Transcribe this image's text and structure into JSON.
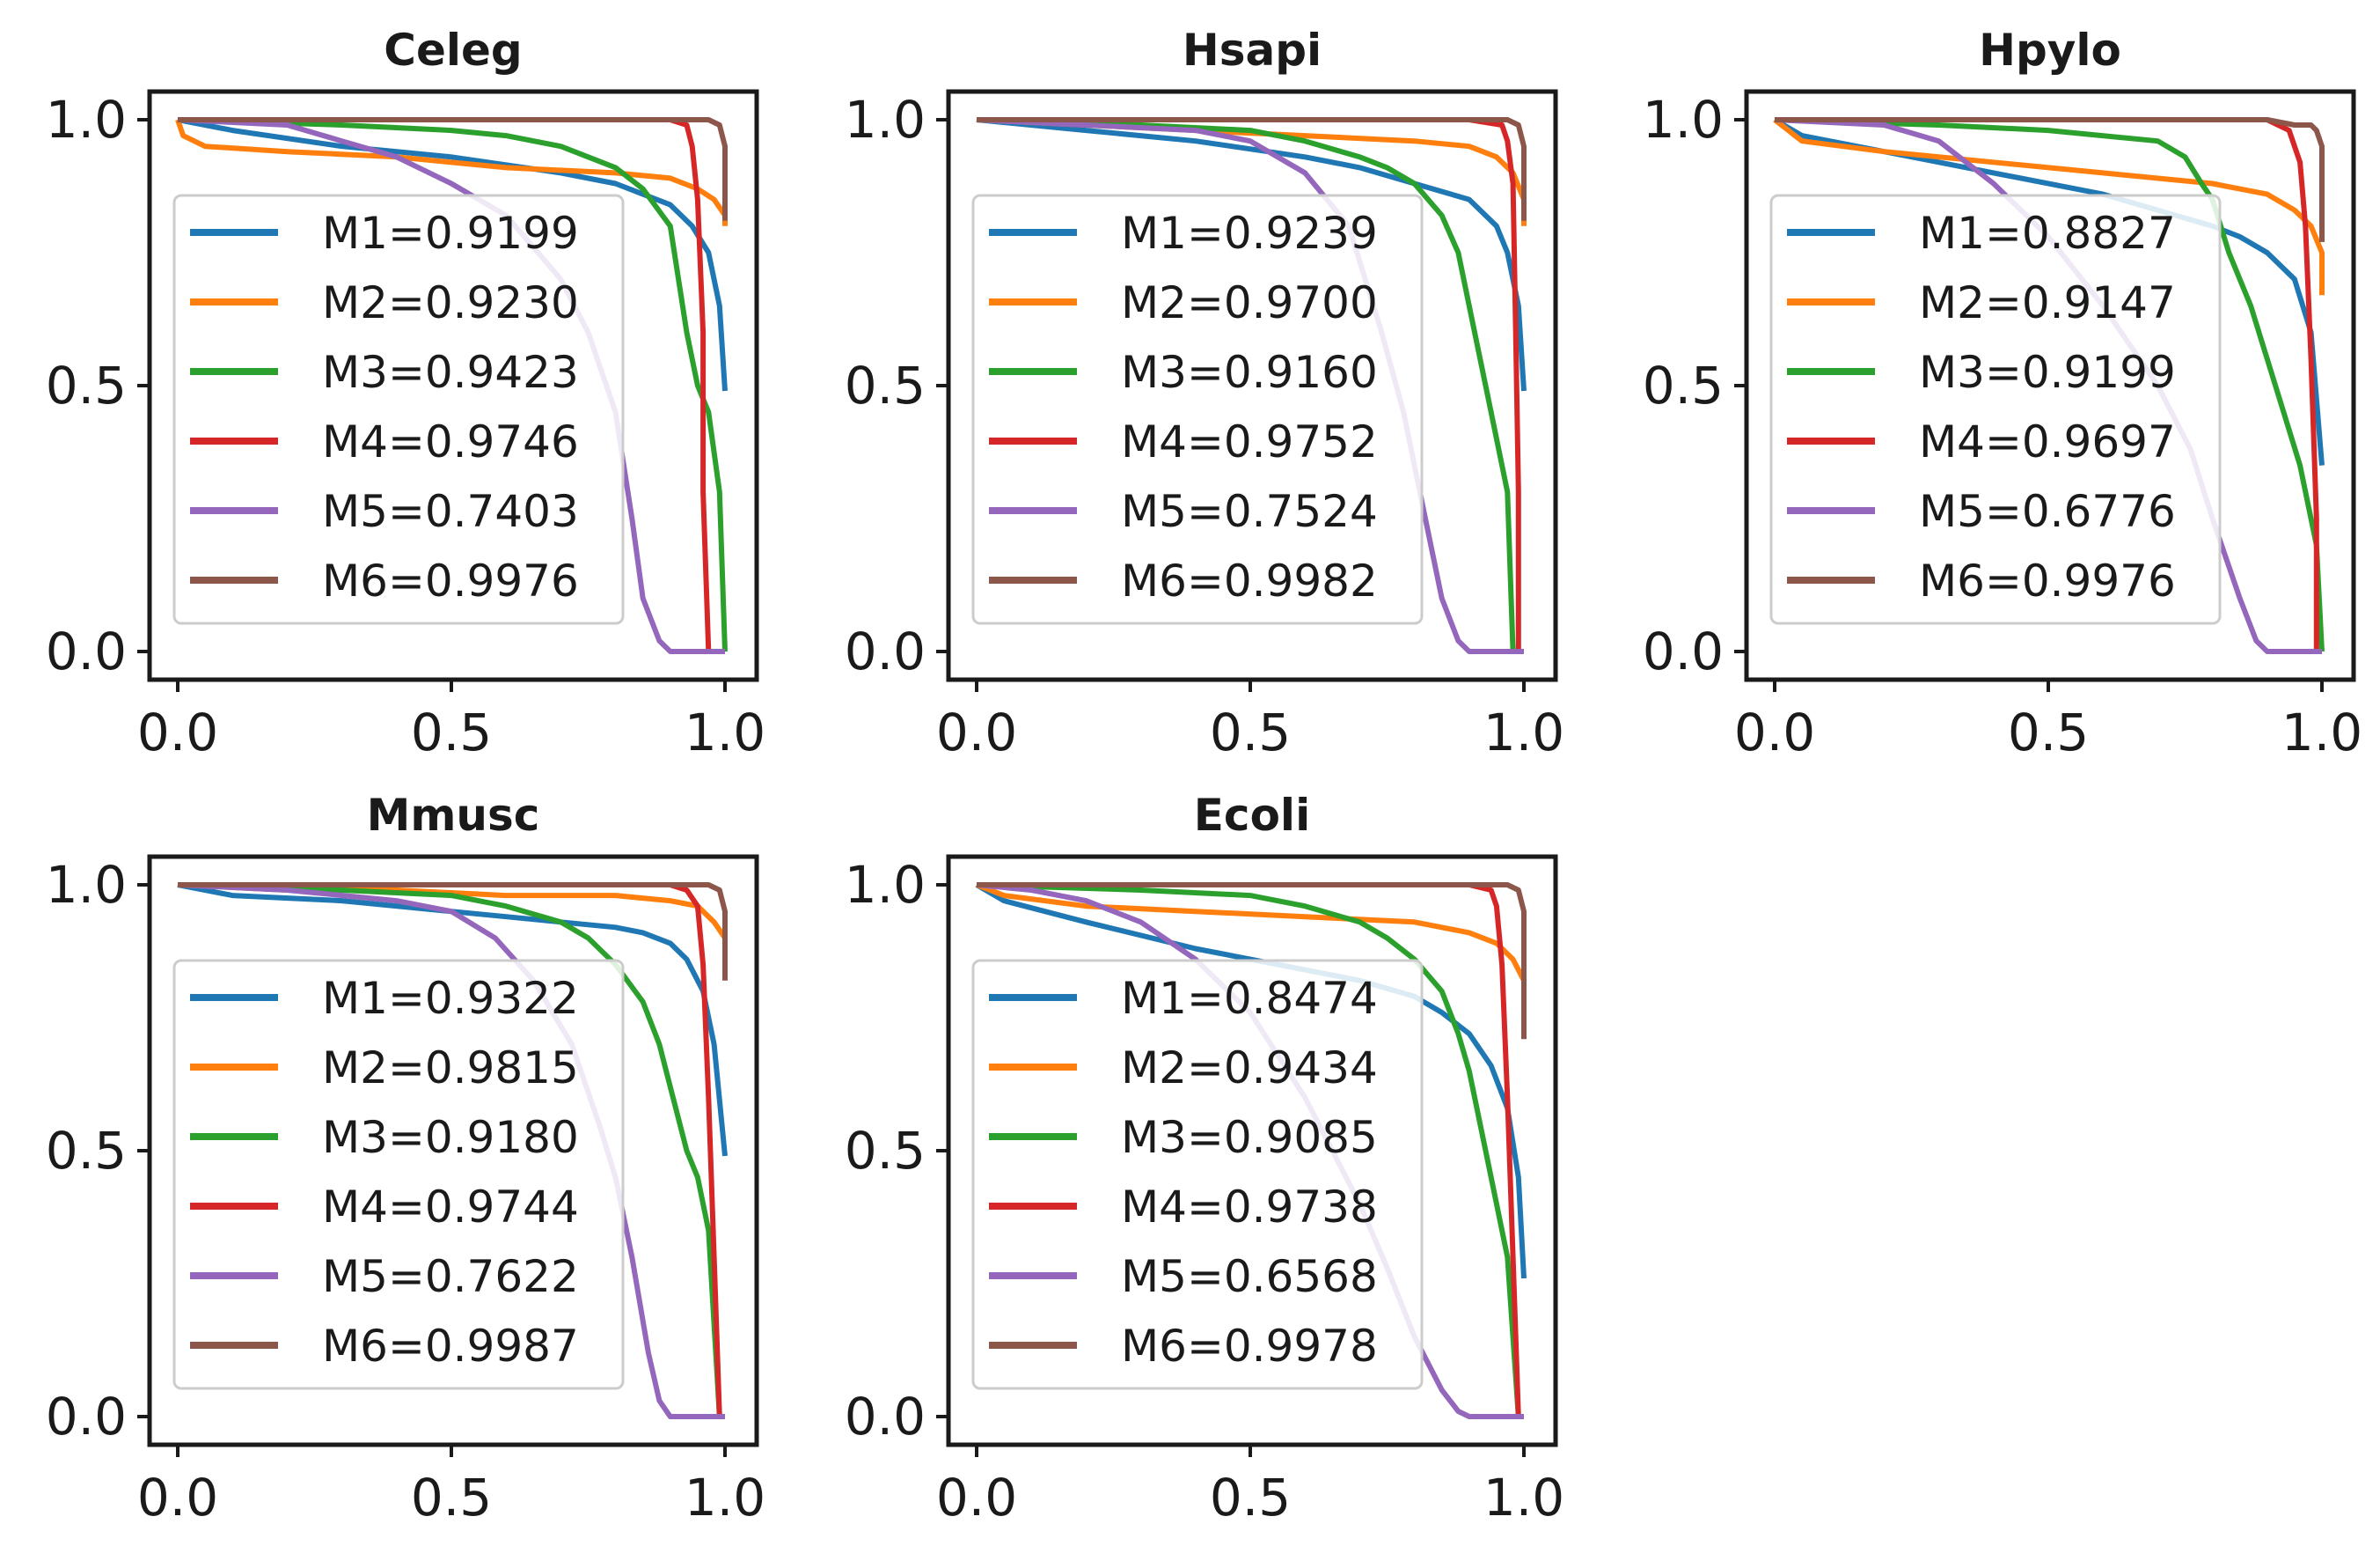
{
  "series_colors": [
    "#1f77b4",
    "#ff7f0e",
    "#2ca02c",
    "#d62728",
    "#9467bd",
    "#8c564b"
  ],
  "chart_data": [
    {
      "type": "line",
      "title": "Celeg",
      "xlim": [
        0,
        1
      ],
      "ylim": [
        0,
        1
      ],
      "xticks": [
        "0.0",
        "0.5",
        "1.0"
      ],
      "yticks": [
        "0.0",
        "0.5",
        "1.0"
      ],
      "legend_position": "center-left",
      "grid": false,
      "series": [
        {
          "name": "M1=0.9199",
          "color": "#1f77b4",
          "x": [
            0,
            0.1,
            0.3,
            0.5,
            0.7,
            0.8,
            0.85,
            0.9,
            0.94,
            0.97,
            0.99,
            1.0
          ],
          "y": [
            1.0,
            0.98,
            0.95,
            0.93,
            0.9,
            0.88,
            0.86,
            0.84,
            0.8,
            0.75,
            0.65,
            0.49
          ]
        },
        {
          "name": "M2=0.9230",
          "color": "#ff7f0e",
          "x": [
            0,
            0.01,
            0.05,
            0.2,
            0.4,
            0.6,
            0.8,
            0.9,
            0.95,
            0.98,
            1.0,
            1.0
          ],
          "y": [
            1.0,
            0.97,
            0.95,
            0.94,
            0.93,
            0.91,
            0.9,
            0.89,
            0.87,
            0.85,
            0.82,
            0.8
          ]
        },
        {
          "name": "M3=0.9423",
          "color": "#2ca02c",
          "x": [
            0,
            0.3,
            0.5,
            0.6,
            0.7,
            0.8,
            0.85,
            0.9,
            0.93,
            0.95,
            0.97,
            0.99,
            1.0
          ],
          "y": [
            1.0,
            0.99,
            0.98,
            0.97,
            0.95,
            0.91,
            0.87,
            0.8,
            0.6,
            0.5,
            0.45,
            0.3,
            0.0
          ]
        },
        {
          "name": "M4=0.9746",
          "color": "#d62728",
          "x": [
            0,
            0.5,
            0.9,
            0.93,
            0.94,
            0.95,
            0.96,
            0.96,
            0.97
          ],
          "y": [
            1.0,
            1.0,
            1.0,
            0.99,
            0.95,
            0.85,
            0.6,
            0.3,
            0.0
          ]
        },
        {
          "name": "M5=0.7403",
          "color": "#9467bd",
          "x": [
            0,
            0.2,
            0.3,
            0.4,
            0.5,
            0.6,
            0.7,
            0.75,
            0.8,
            0.83,
            0.85,
            0.88,
            0.9,
            1.0
          ],
          "y": [
            1.0,
            0.99,
            0.96,
            0.93,
            0.88,
            0.82,
            0.7,
            0.6,
            0.45,
            0.25,
            0.1,
            0.02,
            0.0,
            0.0
          ]
        },
        {
          "name": "M6=0.9976",
          "color": "#8c564b",
          "x": [
            0,
            0.5,
            0.9,
            0.97,
            0.99,
            1.0,
            1.0
          ],
          "y": [
            1.0,
            1.0,
            1.0,
            1.0,
            0.99,
            0.95,
            0.81
          ]
        }
      ]
    },
    {
      "type": "line",
      "title": "Hsapi",
      "xlim": [
        0,
        1
      ],
      "ylim": [
        0,
        1
      ],
      "xticks": [
        "0.0",
        "0.5",
        "1.0"
      ],
      "yticks": [
        "0.0",
        "0.5",
        "1.0"
      ],
      "legend_position": "center-left",
      "grid": false,
      "series": [
        {
          "name": "M1=0.9239",
          "color": "#1f77b4",
          "x": [
            0,
            0.2,
            0.4,
            0.6,
            0.7,
            0.8,
            0.9,
            0.95,
            0.97,
            0.99,
            1.0
          ],
          "y": [
            1.0,
            0.98,
            0.96,
            0.93,
            0.91,
            0.88,
            0.85,
            0.8,
            0.75,
            0.65,
            0.49
          ]
        },
        {
          "name": "M2=0.9700",
          "color": "#ff7f0e",
          "x": [
            0,
            0.2,
            0.4,
            0.6,
            0.8,
            0.9,
            0.95,
            0.98,
            1.0,
            1.0
          ],
          "y": [
            1.0,
            0.99,
            0.98,
            0.97,
            0.96,
            0.95,
            0.93,
            0.9,
            0.85,
            0.8
          ]
        },
        {
          "name": "M3=0.9160",
          "color": "#2ca02c",
          "x": [
            0,
            0.3,
            0.5,
            0.6,
            0.7,
            0.75,
            0.8,
            0.85,
            0.88,
            0.9,
            0.93,
            0.95,
            0.97,
            0.98
          ],
          "y": [
            1.0,
            0.99,
            0.98,
            0.96,
            0.93,
            0.91,
            0.88,
            0.82,
            0.75,
            0.65,
            0.5,
            0.4,
            0.3,
            0.0
          ]
        },
        {
          "name": "M4=0.9752",
          "color": "#d62728",
          "x": [
            0,
            0.5,
            0.9,
            0.96,
            0.97,
            0.98,
            0.985,
            0.99,
            0.99
          ],
          "y": [
            1.0,
            1.0,
            1.0,
            0.99,
            0.96,
            0.88,
            0.6,
            0.3,
            0.0
          ]
        },
        {
          "name": "M5=0.7524",
          "color": "#9467bd",
          "x": [
            0,
            0.2,
            0.4,
            0.5,
            0.6,
            0.68,
            0.74,
            0.78,
            0.82,
            0.85,
            0.88,
            0.9,
            1.0
          ],
          "y": [
            1.0,
            0.99,
            0.98,
            0.96,
            0.9,
            0.8,
            0.6,
            0.45,
            0.25,
            0.1,
            0.02,
            0.0,
            0.0
          ]
        },
        {
          "name": "M6=0.9982",
          "color": "#8c564b",
          "x": [
            0,
            0.5,
            0.9,
            0.97,
            0.99,
            1.0,
            1.0
          ],
          "y": [
            1.0,
            1.0,
            1.0,
            1.0,
            0.99,
            0.95,
            0.81
          ]
        }
      ]
    },
    {
      "type": "line",
      "title": "Hpylo",
      "xlim": [
        0,
        1
      ],
      "ylim": [
        0,
        1
      ],
      "xticks": [
        "0.0",
        "0.5",
        "1.0"
      ],
      "yticks": [
        "0.0",
        "0.5",
        "1.0"
      ],
      "legend_position": "center-left",
      "grid": false,
      "series": [
        {
          "name": "M1=0.8827",
          "color": "#1f77b4",
          "x": [
            0,
            0.05,
            0.2,
            0.4,
            0.6,
            0.7,
            0.8,
            0.85,
            0.9,
            0.95,
            0.98,
            1.0
          ],
          "y": [
            1.0,
            0.97,
            0.94,
            0.9,
            0.86,
            0.83,
            0.8,
            0.78,
            0.75,
            0.7,
            0.6,
            0.35
          ]
        },
        {
          "name": "M2=0.9147",
          "color": "#ff7f0e",
          "x": [
            0,
            0.05,
            0.2,
            0.4,
            0.6,
            0.8,
            0.9,
            0.95,
            0.98,
            1.0,
            1.0
          ],
          "y": [
            1.0,
            0.96,
            0.94,
            0.92,
            0.9,
            0.88,
            0.86,
            0.83,
            0.8,
            0.75,
            0.67
          ]
        },
        {
          "name": "M3=0.9199",
          "color": "#2ca02c",
          "x": [
            0,
            0.3,
            0.5,
            0.7,
            0.75,
            0.78,
            0.8,
            0.83,
            0.87,
            0.9,
            0.93,
            0.96,
            0.99,
            1.0
          ],
          "y": [
            1.0,
            0.99,
            0.98,
            0.96,
            0.93,
            0.88,
            0.85,
            0.75,
            0.65,
            0.55,
            0.45,
            0.35,
            0.2,
            0.0
          ]
        },
        {
          "name": "M4=0.9697",
          "color": "#d62728",
          "x": [
            0,
            0.5,
            0.9,
            0.94,
            0.96,
            0.97,
            0.98,
            0.99,
            0.99
          ],
          "y": [
            1.0,
            1.0,
            1.0,
            0.98,
            0.92,
            0.8,
            0.55,
            0.25,
            0.0
          ]
        },
        {
          "name": "M5=0.6776",
          "color": "#9467bd",
          "x": [
            0,
            0.2,
            0.3,
            0.4,
            0.5,
            0.6,
            0.7,
            0.76,
            0.8,
            0.85,
            0.88,
            0.9,
            1.0
          ],
          "y": [
            1.0,
            0.99,
            0.96,
            0.88,
            0.78,
            0.65,
            0.5,
            0.38,
            0.25,
            0.1,
            0.02,
            0.0,
            0.0
          ]
        },
        {
          "name": "M6=0.9976",
          "color": "#8c564b",
          "x": [
            0,
            0.5,
            0.9,
            0.95,
            0.98,
            0.99,
            1.0,
            1.0
          ],
          "y": [
            1.0,
            1.0,
            1.0,
            0.99,
            0.99,
            0.98,
            0.95,
            0.77
          ]
        }
      ]
    },
    {
      "type": "line",
      "title": "Mmusc",
      "xlim": [
        0,
        1
      ],
      "ylim": [
        0,
        1
      ],
      "xticks": [
        "0.0",
        "0.5",
        "1.0"
      ],
      "yticks": [
        "0.0",
        "0.5",
        "1.0"
      ],
      "legend_position": "center-left",
      "grid": false,
      "series": [
        {
          "name": "M1=0.9322",
          "color": "#1f77b4",
          "x": [
            0,
            0.1,
            0.3,
            0.5,
            0.6,
            0.7,
            0.8,
            0.85,
            0.9,
            0.93,
            0.96,
            0.98,
            1.0
          ],
          "y": [
            1.0,
            0.98,
            0.97,
            0.95,
            0.94,
            0.93,
            0.92,
            0.91,
            0.89,
            0.86,
            0.8,
            0.7,
            0.49
          ]
        },
        {
          "name": "M2=0.9815",
          "color": "#ff7f0e",
          "x": [
            0,
            0.2,
            0.4,
            0.6,
            0.8,
            0.9,
            0.95,
            0.98,
            1.0,
            1.0
          ],
          "y": [
            1.0,
            0.99,
            0.99,
            0.98,
            0.98,
            0.97,
            0.96,
            0.93,
            0.9,
            0.85
          ]
        },
        {
          "name": "M3=0.9180",
          "color": "#2ca02c",
          "x": [
            0,
            0.3,
            0.5,
            0.6,
            0.7,
            0.75,
            0.8,
            0.85,
            0.88,
            0.9,
            0.93,
            0.95,
            0.97,
            0.99
          ],
          "y": [
            1.0,
            0.99,
            0.98,
            0.96,
            0.93,
            0.9,
            0.85,
            0.78,
            0.7,
            0.62,
            0.5,
            0.45,
            0.35,
            0.0
          ]
        },
        {
          "name": "M4=0.9744",
          "color": "#d62728",
          "x": [
            0,
            0.5,
            0.9,
            0.93,
            0.95,
            0.96,
            0.97,
            0.98,
            0.99
          ],
          "y": [
            1.0,
            1.0,
            1.0,
            0.99,
            0.96,
            0.85,
            0.6,
            0.3,
            0.0
          ]
        },
        {
          "name": "M5=0.7622",
          "color": "#9467bd",
          "x": [
            0,
            0.2,
            0.4,
            0.5,
            0.58,
            0.65,
            0.72,
            0.77,
            0.8,
            0.83,
            0.86,
            0.88,
            0.9,
            1.0
          ],
          "y": [
            1.0,
            0.99,
            0.97,
            0.95,
            0.9,
            0.82,
            0.7,
            0.55,
            0.45,
            0.3,
            0.12,
            0.03,
            0.0,
            0.0
          ]
        },
        {
          "name": "M6=0.9987",
          "color": "#8c564b",
          "x": [
            0,
            0.5,
            0.9,
            0.97,
            0.99,
            1.0,
            1.0
          ],
          "y": [
            1.0,
            1.0,
            1.0,
            1.0,
            0.99,
            0.95,
            0.82
          ]
        }
      ]
    },
    {
      "type": "line",
      "title": "Ecoli",
      "xlim": [
        0,
        1
      ],
      "ylim": [
        0,
        1
      ],
      "xticks": [
        "0.0",
        "0.5",
        "1.0"
      ],
      "yticks": [
        "0.0",
        "0.5",
        "1.0"
      ],
      "legend_position": "center-left",
      "grid": false,
      "series": [
        {
          "name": "M1=0.8474",
          "color": "#1f77b4",
          "x": [
            0,
            0.05,
            0.2,
            0.4,
            0.6,
            0.7,
            0.8,
            0.85,
            0.9,
            0.94,
            0.97,
            0.99,
            1.0
          ],
          "y": [
            1.0,
            0.97,
            0.93,
            0.88,
            0.84,
            0.82,
            0.79,
            0.76,
            0.72,
            0.66,
            0.58,
            0.45,
            0.26
          ]
        },
        {
          "name": "M2=0.9434",
          "color": "#ff7f0e",
          "x": [
            0,
            0.05,
            0.2,
            0.4,
            0.6,
            0.8,
            0.9,
            0.95,
            0.98,
            1.0,
            1.0
          ],
          "y": [
            1.0,
            0.98,
            0.96,
            0.95,
            0.94,
            0.93,
            0.91,
            0.89,
            0.86,
            0.82,
            0.78
          ]
        },
        {
          "name": "M3=0.9085",
          "color": "#2ca02c",
          "x": [
            0,
            0.3,
            0.5,
            0.6,
            0.7,
            0.75,
            0.8,
            0.85,
            0.88,
            0.9,
            0.93,
            0.95,
            0.97,
            0.99
          ],
          "y": [
            1.0,
            0.99,
            0.98,
            0.96,
            0.93,
            0.9,
            0.86,
            0.8,
            0.72,
            0.65,
            0.5,
            0.4,
            0.3,
            0.0
          ]
        },
        {
          "name": "M4=0.9738",
          "color": "#d62728",
          "x": [
            0,
            0.5,
            0.9,
            0.94,
            0.95,
            0.96,
            0.97,
            0.98,
            0.99
          ],
          "y": [
            1.0,
            1.0,
            1.0,
            0.99,
            0.96,
            0.85,
            0.6,
            0.3,
            0.0
          ]
        },
        {
          "name": "M5=0.6568",
          "color": "#9467bd",
          "x": [
            0,
            0.1,
            0.2,
            0.3,
            0.4,
            0.5,
            0.6,
            0.7,
            0.75,
            0.8,
            0.85,
            0.88,
            0.9,
            1.0
          ],
          "y": [
            1.0,
            0.99,
            0.97,
            0.93,
            0.86,
            0.76,
            0.6,
            0.4,
            0.28,
            0.15,
            0.05,
            0.01,
            0.0,
            0.0
          ]
        },
        {
          "name": "M6=0.9978",
          "color": "#8c564b",
          "x": [
            0,
            0.5,
            0.9,
            0.97,
            0.99,
            1.0,
            1.0
          ],
          "y": [
            1.0,
            1.0,
            1.0,
            1.0,
            0.99,
            0.95,
            0.71
          ]
        }
      ]
    }
  ]
}
